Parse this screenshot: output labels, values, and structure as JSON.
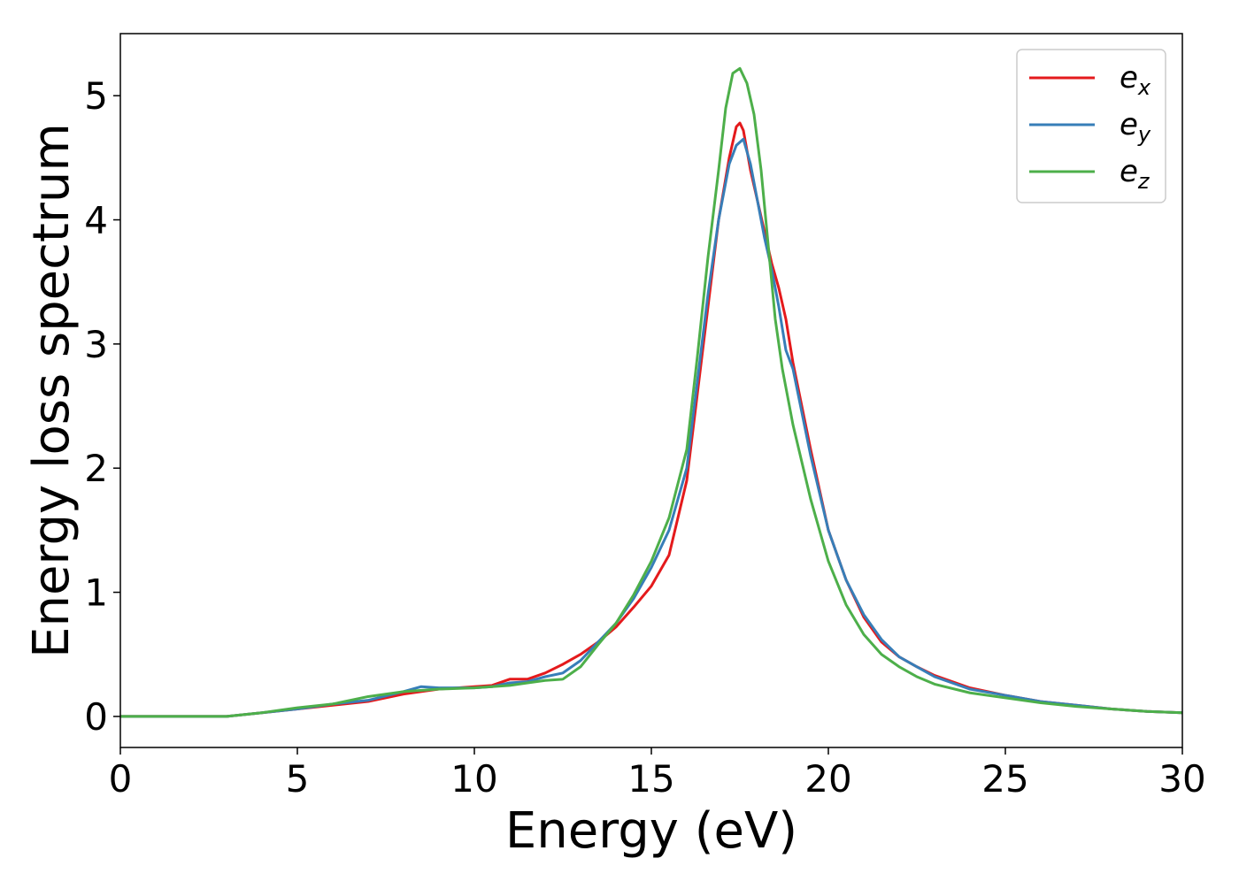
{
  "chart_data": {
    "type": "line",
    "title": "",
    "xlabel": "Energy (eV)",
    "ylabel": "Energy loss spectrum",
    "xlim": [
      0,
      30
    ],
    "ylim": [
      -0.25,
      5.5
    ],
    "xticks": [
      0,
      5,
      10,
      15,
      20,
      25,
      30
    ],
    "xtick_labels": [
      "0",
      "5",
      "10",
      "15",
      "20",
      "25",
      "30"
    ],
    "yticks": [
      0,
      1,
      2,
      3,
      4,
      5
    ],
    "ytick_labels": [
      "0",
      "1",
      "2",
      "3",
      "4",
      "5"
    ],
    "grid": false,
    "legend_position": "top-right",
    "series": [
      {
        "name": "e",
        "subscript": "x",
        "color": "#e41a1c",
        "x": [
          0,
          1,
          2,
          3,
          4,
          5,
          6,
          7,
          8,
          9,
          10,
          10.5,
          11,
          11.5,
          12,
          12.5,
          13,
          13.5,
          14,
          14.5,
          15,
          15.5,
          16,
          16.3,
          16.6,
          16.9,
          17.2,
          17.4,
          17.5,
          17.6,
          17.8,
          18.0,
          18.2,
          18.4,
          18.6,
          18.8,
          19.0,
          19.5,
          20,
          20.5,
          21,
          21.5,
          22,
          22.5,
          23,
          24,
          25,
          26,
          27,
          28,
          29,
          30
        ],
        "y": [
          0.0,
          0.0,
          0.0,
          0.0,
          0.03,
          0.06,
          0.09,
          0.12,
          0.18,
          0.22,
          0.24,
          0.25,
          0.3,
          0.3,
          0.35,
          0.42,
          0.5,
          0.6,
          0.72,
          0.88,
          1.05,
          1.3,
          1.9,
          2.6,
          3.3,
          4.0,
          4.5,
          4.75,
          4.78,
          4.72,
          4.4,
          4.15,
          3.9,
          3.65,
          3.45,
          3.2,
          2.85,
          2.15,
          1.5,
          1.1,
          0.8,
          0.6,
          0.48,
          0.4,
          0.33,
          0.23,
          0.17,
          0.12,
          0.09,
          0.06,
          0.04,
          0.03
        ]
      },
      {
        "name": "e",
        "subscript": "y",
        "color": "#377eb8",
        "x": [
          0,
          1,
          2,
          3,
          4,
          5,
          6,
          7,
          8,
          8.5,
          9,
          10,
          10.5,
          11,
          11.5,
          12,
          12.5,
          13,
          13.5,
          14,
          14.5,
          15,
          15.5,
          16,
          16.3,
          16.6,
          16.9,
          17.2,
          17.4,
          17.6,
          17.8,
          18.0,
          18.2,
          18.4,
          18.6,
          18.8,
          19.0,
          19.5,
          20,
          20.5,
          21,
          21.5,
          22,
          22.5,
          23,
          24,
          25,
          26,
          27,
          28,
          29,
          30
        ],
        "y": [
          0.0,
          0.0,
          0.0,
          0.0,
          0.03,
          0.06,
          0.1,
          0.13,
          0.2,
          0.24,
          0.23,
          0.23,
          0.24,
          0.27,
          0.28,
          0.32,
          0.35,
          0.45,
          0.6,
          0.75,
          0.95,
          1.2,
          1.5,
          2.0,
          2.7,
          3.4,
          4.0,
          4.45,
          4.6,
          4.65,
          4.45,
          4.15,
          3.85,
          3.6,
          3.3,
          2.95,
          2.8,
          2.1,
          1.5,
          1.1,
          0.82,
          0.62,
          0.48,
          0.4,
          0.32,
          0.22,
          0.17,
          0.12,
          0.09,
          0.06,
          0.04,
          0.03
        ]
      },
      {
        "name": "e",
        "subscript": "z",
        "color": "#4daf4a",
        "x": [
          0,
          1,
          2,
          3,
          4,
          5,
          6,
          7,
          8,
          9,
          10,
          11,
          11.5,
          12,
          12.5,
          13,
          13.5,
          14,
          14.5,
          15,
          15.5,
          16,
          16.3,
          16.6,
          16.9,
          17.1,
          17.3,
          17.5,
          17.7,
          17.9,
          18.1,
          18.3,
          18.5,
          18.7,
          19.0,
          19.5,
          20,
          20.5,
          21,
          21.5,
          22,
          22.5,
          23,
          24,
          25,
          26,
          27,
          28,
          29,
          30
        ],
        "y": [
          0.0,
          0.0,
          0.0,
          0.0,
          0.03,
          0.07,
          0.1,
          0.16,
          0.2,
          0.22,
          0.23,
          0.25,
          0.27,
          0.29,
          0.3,
          0.4,
          0.58,
          0.75,
          0.98,
          1.25,
          1.6,
          2.15,
          2.9,
          3.7,
          4.4,
          4.9,
          5.18,
          5.22,
          5.1,
          4.85,
          4.4,
          3.8,
          3.2,
          2.8,
          2.35,
          1.75,
          1.25,
          0.9,
          0.66,
          0.5,
          0.4,
          0.32,
          0.26,
          0.19,
          0.15,
          0.11,
          0.08,
          0.06,
          0.04,
          0.03
        ]
      }
    ]
  }
}
